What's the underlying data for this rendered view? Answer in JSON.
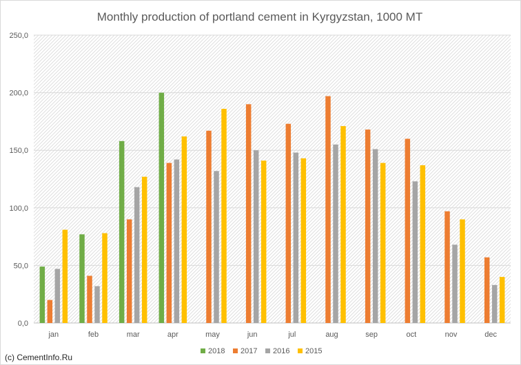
{
  "chart_data": {
    "type": "bar",
    "title": "Monthly production of portland cement in Kyrgyzstan, 1000 MT",
    "xlabel": "",
    "ylabel": "",
    "ylim": [
      0,
      250
    ],
    "yticks": [
      "0,0",
      "50,0",
      "100,0",
      "150,0",
      "200,0",
      "250,0"
    ],
    "categories": [
      "jan",
      "feb",
      "mar",
      "apr",
      "may",
      "jun",
      "jul",
      "aug",
      "sep",
      "oct",
      "nov",
      "dec"
    ],
    "series": [
      {
        "name": "2018",
        "color": "#70ad47",
        "values": [
          49,
          77,
          158,
          200,
          null,
          null,
          null,
          null,
          null,
          null,
          null,
          null
        ]
      },
      {
        "name": "2017",
        "color": "#ed7d31",
        "values": [
          20,
          41,
          90,
          139,
          167,
          190,
          173,
          197,
          168,
          160,
          97,
          57
        ]
      },
      {
        "name": "2016",
        "color": "#a5a5a5",
        "values": [
          47,
          32,
          118,
          142,
          132,
          150,
          148,
          155,
          151,
          123,
          68,
          33
        ]
      },
      {
        "name": "2015",
        "color": "#ffc000",
        "values": [
          81,
          78,
          127,
          162,
          186,
          141,
          143,
          171,
          139,
          137,
          90,
          40
        ]
      }
    ],
    "grid": true,
    "gridlines": "horizontal",
    "background_pattern": "diagonal-hatch",
    "legend": "bottom"
  },
  "watermark": "(c) CementInfo.Ru"
}
